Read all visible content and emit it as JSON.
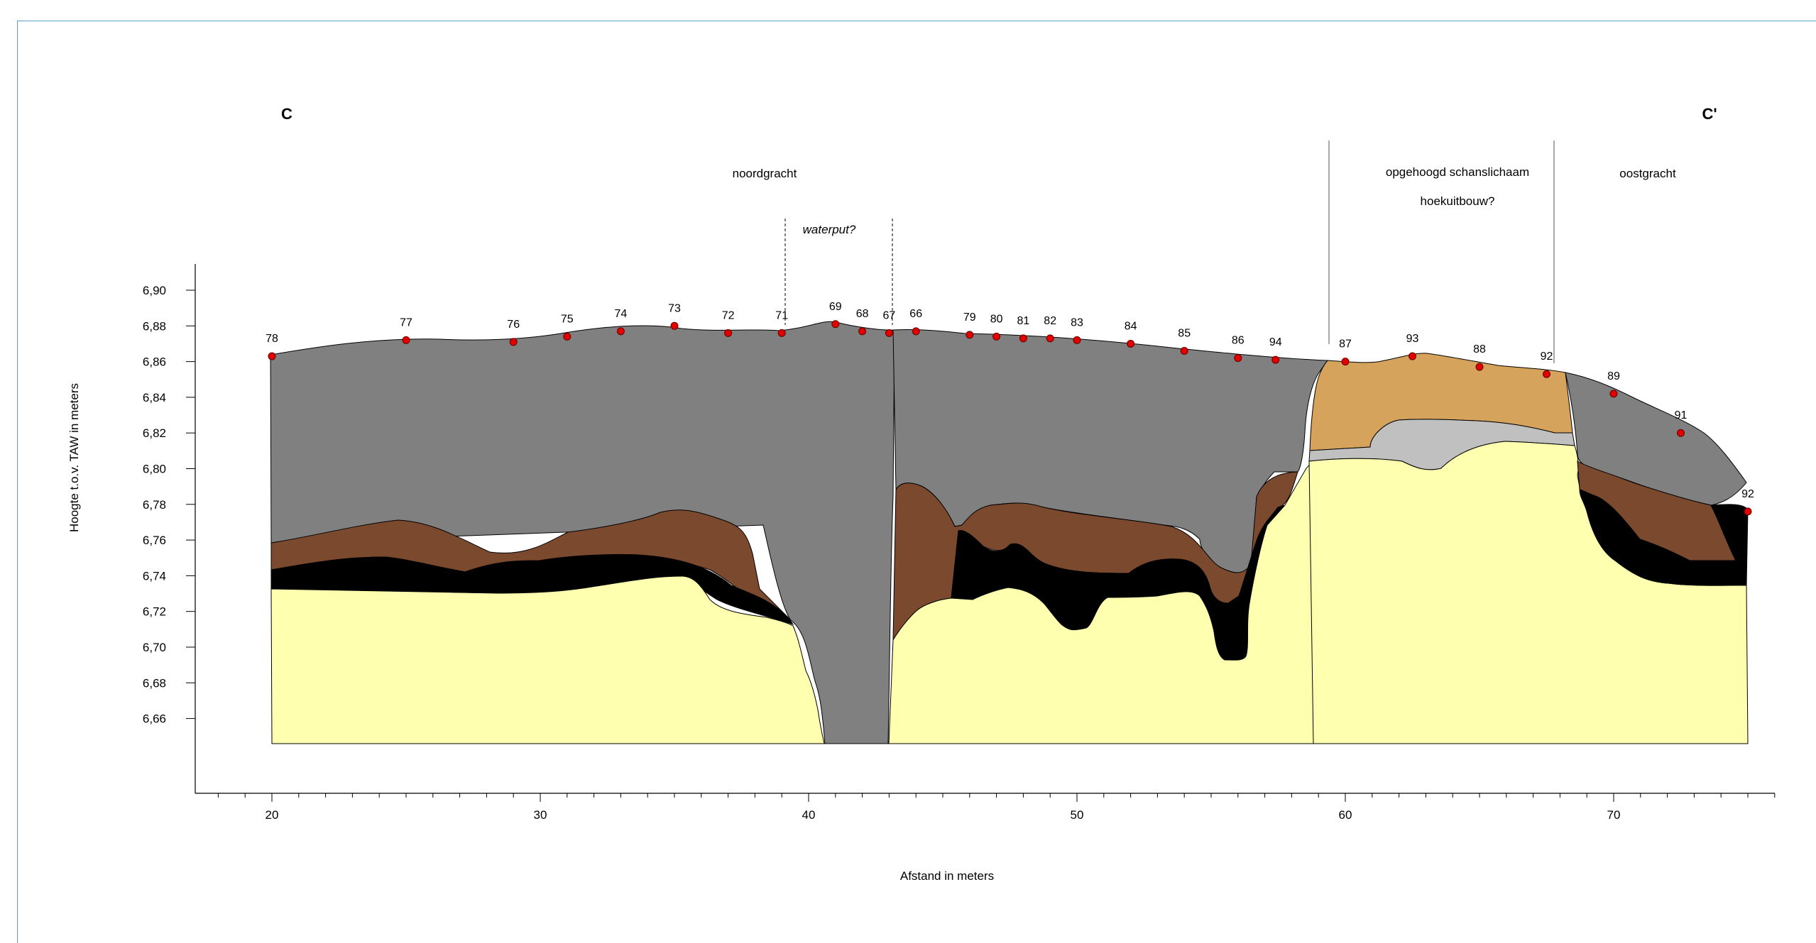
{
  "section": {
    "left_label": "C",
    "right_label": "C'"
  },
  "zones": {
    "noordgracht": "noordgracht",
    "waterput": "waterput?",
    "schanslichaam": "opgehoogd schanslichaam",
    "hoekuitbouw": "hoekuitbouw?",
    "oostgracht": "oostgracht"
  },
  "axes": {
    "y_label": "Hoogte t.o.v. TAW in meters",
    "x_label": "Afstand in meters",
    "y_ticks": [
      "6,90",
      "6,88",
      "6,86",
      "6,84",
      "6,82",
      "6,80",
      "6,78",
      "6,76",
      "6,74",
      "6,72",
      "6,70",
      "6,68",
      "6,66"
    ],
    "x_ticks": [
      "20",
      "30",
      "40",
      "50",
      "60",
      "70"
    ]
  },
  "chart_data": {
    "type": "cross-section",
    "xlabel": "Afstand in meters",
    "ylabel": "Hoogte t.o.v. TAW in meters",
    "xlim": [
      17,
      77
    ],
    "ylim": [
      6.62,
      6.92
    ],
    "colors": {
      "topsoil": "#808080",
      "brown": "#7b4a2e",
      "black": "#000000",
      "sand": "#ffffb0",
      "ochre": "#d6a35c",
      "lightgrey": "#c0c0c0",
      "point": "#e00000"
    },
    "points": [
      {
        "label": "78",
        "x": 20.0,
        "y": 6.863
      },
      {
        "label": "77",
        "x": 25.0,
        "y": 6.872
      },
      {
        "label": "76",
        "x": 29.0,
        "y": 6.871
      },
      {
        "label": "75",
        "x": 31.0,
        "y": 6.874
      },
      {
        "label": "74",
        "x": 33.0,
        "y": 6.877
      },
      {
        "label": "73",
        "x": 35.0,
        "y": 6.88
      },
      {
        "label": "72",
        "x": 37.0,
        "y": 6.876
      },
      {
        "label": "71",
        "x": 39.0,
        "y": 6.876
      },
      {
        "label": "69",
        "x": 41.0,
        "y": 6.881
      },
      {
        "label": "68",
        "x": 42.0,
        "y": 6.877
      },
      {
        "label": "67",
        "x": 43.0,
        "y": 6.876
      },
      {
        "label": "66",
        "x": 44.0,
        "y": 6.877
      },
      {
        "label": "79",
        "x": 46.0,
        "y": 6.875
      },
      {
        "label": "80",
        "x": 47.0,
        "y": 6.874
      },
      {
        "label": "81",
        "x": 48.0,
        "y": 6.873
      },
      {
        "label": "82",
        "x": 49.0,
        "y": 6.873
      },
      {
        "label": "83",
        "x": 50.0,
        "y": 6.872
      },
      {
        "label": "84",
        "x": 52.0,
        "y": 6.87
      },
      {
        "label": "85",
        "x": 54.0,
        "y": 6.866
      },
      {
        "label": "86",
        "x": 56.0,
        "y": 6.862
      },
      {
        "label": "94",
        "x": 57.4,
        "y": 6.861
      },
      {
        "label": "87",
        "x": 60.0,
        "y": 6.86
      },
      {
        "label": "93",
        "x": 62.5,
        "y": 6.863
      },
      {
        "label": "88",
        "x": 65.0,
        "y": 6.857
      },
      {
        "label": "92",
        "x": 67.5,
        "y": 6.853
      },
      {
        "label": "89",
        "x": 70.0,
        "y": 6.842
      },
      {
        "label": "91",
        "x": 72.5,
        "y": 6.82
      },
      {
        "label": "92",
        "x": 75.0,
        "y": 6.776
      }
    ]
  }
}
